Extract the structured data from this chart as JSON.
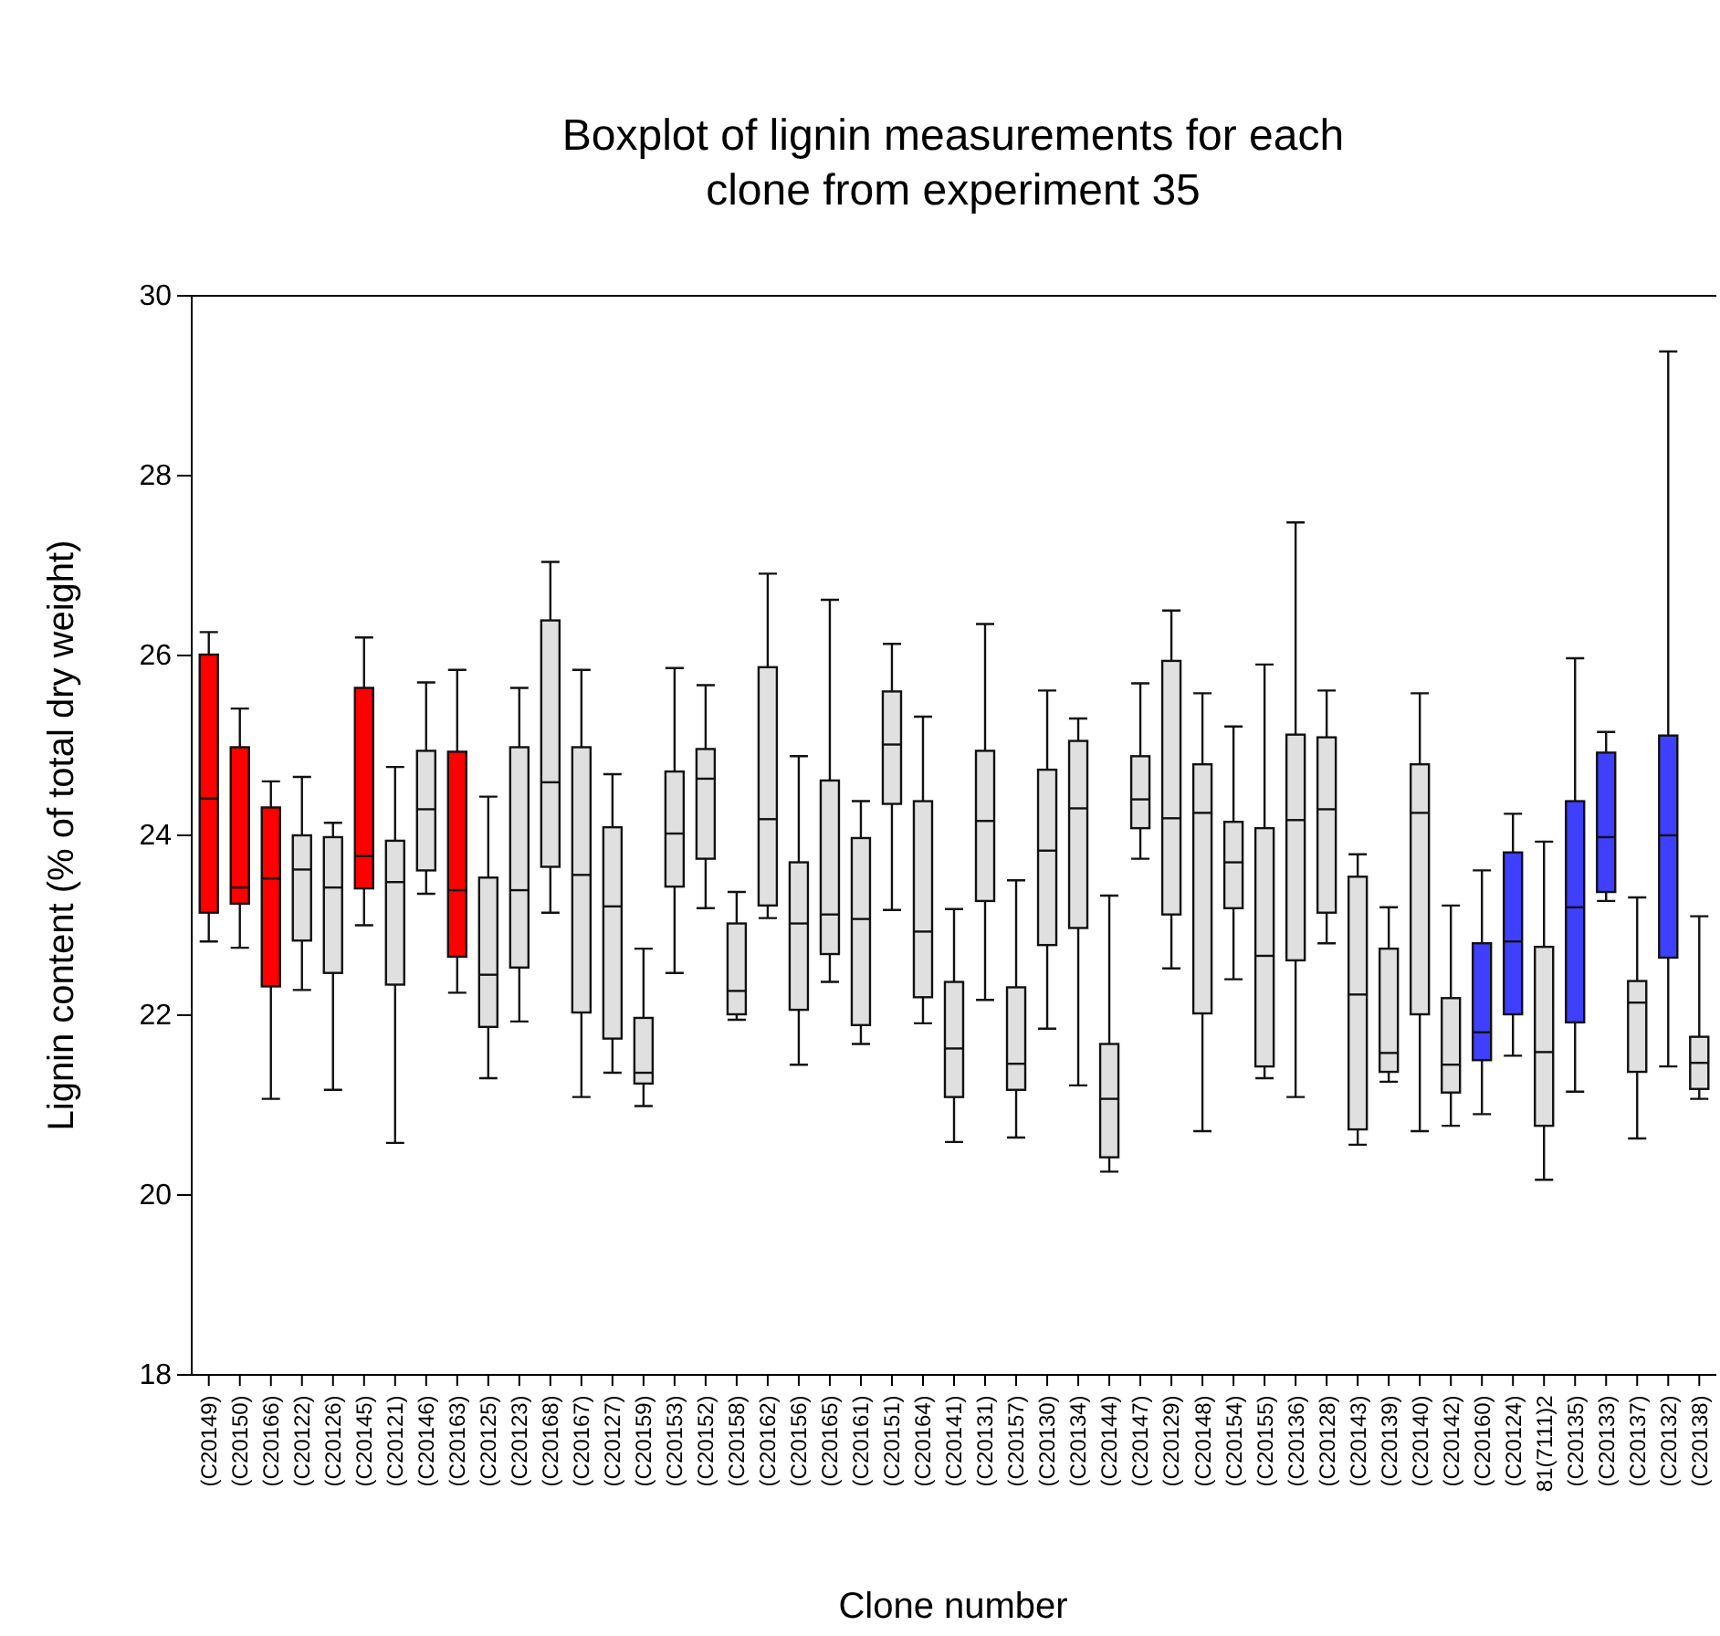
{
  "chart_data": {
    "type": "box",
    "title": "Boxplot of lignin measurements for each clone from experiment 35",
    "xlabel": "Clone number",
    "ylabel": "Lignin content (% of total dry weight)",
    "categories": [
      "(C20149)",
      "(C20150)",
      "(C20166)",
      "(C20122)",
      "(C20126)",
      "(C20145)",
      "(C20121)",
      "(C20146)",
      "(C20163)",
      "(C20125)",
      "(C20123)",
      "(C20168)",
      "(C20167)",
      "(C20127)",
      "(C20159)",
      "(C20153)",
      "(C20152)",
      "(C20158)",
      "(C20162)",
      "(C20156)",
      "(C20165)",
      "(C20161)",
      "(C20151)",
      "(C20164)",
      "(C20141)",
      "(C20131)",
      "(C20157)",
      "(C20130)",
      "(C20134)",
      "(C20144)",
      "(C20147)",
      "(C20129)",
      "(C20148)",
      "(C20154)",
      "(C20155)",
      "(C20136)",
      "(C20128)",
      "(C20143)",
      "(C20139)",
      "(C20140)",
      "(C20142)",
      "(C20160)",
      "(C20124)",
      "81(7111)2",
      "(C20135)",
      "(C20133)",
      "(C20137)",
      "(C20132)",
      "(C20138)"
    ],
    "series": [
      {
        "color": "#ff0000",
        "boxes": [
          {
            "low": 22.82,
            "q1": 23.14,
            "median": 24.41,
            "q3": 26.01,
            "high": 26.26
          },
          {
            "low": 22.75,
            "q1": 23.24,
            "median": 23.42,
            "q3": 24.98,
            "high": 25.41
          },
          {
            "low": 21.07,
            "q1": 22.32,
            "median": 23.52,
            "q3": 24.31,
            "high": 24.6
          },
          null,
          null,
          {
            "low": 23.0,
            "q1": 23.41,
            "median": 23.77,
            "q3": 25.64,
            "high": 26.2
          },
          null,
          null,
          {
            "low": 22.25,
            "q1": 22.65,
            "median": 23.39,
            "q3": 24.93,
            "high": 25.84
          },
          null,
          null,
          null,
          null,
          null,
          null,
          null,
          null,
          null,
          null,
          null,
          null,
          null,
          null,
          null,
          null,
          null,
          null,
          null,
          null,
          null,
          null,
          null,
          null,
          null,
          null,
          null,
          null,
          null,
          null,
          null,
          null,
          null,
          null,
          null,
          null,
          null,
          null,
          null,
          null
        ]
      },
      {
        "color": "#e0e0e0",
        "boxes": [
          null,
          null,
          null,
          {
            "low": 22.28,
            "q1": 22.83,
            "median": 23.62,
            "q3": 24.0,
            "high": 24.65
          },
          {
            "low": 21.17,
            "q1": 22.47,
            "median": 23.42,
            "q3": 23.98,
            "high": 24.14
          },
          null,
          {
            "low": 20.58,
            "q1": 22.34,
            "median": 23.48,
            "q3": 23.94,
            "high": 24.76
          },
          {
            "low": 23.35,
            "q1": 23.61,
            "median": 24.29,
            "q3": 24.94,
            "high": 25.7
          },
          null,
          {
            "low": 21.3,
            "q1": 21.87,
            "median": 22.45,
            "q3": 23.53,
            "high": 24.43
          },
          {
            "low": 21.93,
            "q1": 22.53,
            "median": 23.39,
            "q3": 24.98,
            "high": 25.64
          },
          {
            "low": 23.14,
            "q1": 23.65,
            "median": 24.59,
            "q3": 26.39,
            "high": 27.04
          },
          {
            "low": 21.09,
            "q1": 22.03,
            "median": 23.56,
            "q3": 24.98,
            "high": 25.84
          },
          {
            "low": 21.36,
            "q1": 21.74,
            "median": 23.21,
            "q3": 24.09,
            "high": 24.68
          },
          {
            "low": 20.99,
            "q1": 21.24,
            "median": 21.36,
            "q3": 21.97,
            "high": 22.74
          },
          {
            "low": 22.47,
            "q1": 23.43,
            "median": 24.02,
            "q3": 24.71,
            "high": 25.86
          },
          {
            "low": 23.19,
            "q1": 23.74,
            "median": 24.63,
            "q3": 24.96,
            "high": 25.67
          },
          {
            "low": 21.95,
            "q1": 22.01,
            "median": 22.27,
            "q3": 23.02,
            "high": 23.37
          },
          {
            "low": 23.08,
            "q1": 23.22,
            "median": 24.18,
            "q3": 25.87,
            "high": 26.91
          },
          {
            "low": 21.45,
            "q1": 22.06,
            "median": 23.02,
            "q3": 23.7,
            "high": 24.88
          },
          {
            "low": 22.37,
            "q1": 22.68,
            "median": 23.12,
            "q3": 24.61,
            "high": 26.62
          },
          {
            "low": 21.68,
            "q1": 21.89,
            "median": 23.07,
            "q3": 23.97,
            "high": 24.38
          },
          {
            "low": 23.17,
            "q1": 24.35,
            "median": 25.01,
            "q3": 25.6,
            "high": 26.13
          },
          {
            "low": 21.91,
            "q1": 22.2,
            "median": 22.93,
            "q3": 24.38,
            "high": 25.32
          },
          {
            "low": 20.59,
            "q1": 21.09,
            "median": 21.63,
            "q3": 22.37,
            "high": 23.18
          },
          {
            "low": 22.17,
            "q1": 23.27,
            "median": 24.16,
            "q3": 24.94,
            "high": 26.35
          },
          {
            "low": 20.64,
            "q1": 21.17,
            "median": 21.46,
            "q3": 22.31,
            "high": 23.5
          },
          {
            "low": 21.85,
            "q1": 22.78,
            "median": 23.83,
            "q3": 24.73,
            "high": 25.61
          },
          {
            "low": 21.22,
            "q1": 22.97,
            "median": 24.3,
            "q3": 25.05,
            "high": 25.3
          },
          {
            "low": 20.26,
            "q1": 20.42,
            "median": 21.07,
            "q3": 21.68,
            "high": 23.33
          },
          {
            "low": 23.74,
            "q1": 24.08,
            "median": 24.4,
            "q3": 24.88,
            "high": 25.69
          },
          {
            "low": 22.52,
            "q1": 23.12,
            "median": 24.19,
            "q3": 25.94,
            "high": 26.5
          },
          {
            "low": 20.71,
            "q1": 22.02,
            "median": 24.25,
            "q3": 24.79,
            "high": 25.58
          },
          {
            "low": 22.4,
            "q1": 23.19,
            "median": 23.7,
            "q3": 24.15,
            "high": 25.21
          },
          {
            "low": 21.3,
            "q1": 21.43,
            "median": 22.66,
            "q3": 24.08,
            "high": 25.9
          },
          {
            "low": 21.09,
            "q1": 22.61,
            "median": 24.17,
            "q3": 25.12,
            "high": 27.48
          },
          {
            "low": 22.8,
            "q1": 23.14,
            "median": 24.29,
            "q3": 25.09,
            "high": 25.61
          },
          {
            "low": 20.56,
            "q1": 20.73,
            "median": 22.23,
            "q3": 23.54,
            "high": 23.79
          },
          {
            "low": 21.26,
            "q1": 21.37,
            "median": 21.58,
            "q3": 22.74,
            "high": 23.2
          },
          {
            "low": 20.71,
            "q1": 22.01,
            "median": 24.25,
            "q3": 24.79,
            "high": 25.58
          },
          {
            "low": 20.77,
            "q1": 21.14,
            "median": 21.45,
            "q3": 22.19,
            "high": 23.22
          },
          null,
          null,
          {
            "low": 20.17,
            "q1": 20.77,
            "median": 21.59,
            "q3": 22.76,
            "high": 23.93
          },
          null,
          null,
          {
            "low": 20.63,
            "q1": 21.37,
            "median": 22.14,
            "q3": 22.38,
            "high": 23.31
          },
          null,
          {
            "low": 21.07,
            "q1": 21.18,
            "median": 21.47,
            "q3": 21.76,
            "high": 23.1
          }
        ]
      },
      {
        "color": "#3f3fff",
        "boxes": [
          null,
          null,
          null,
          null,
          null,
          null,
          null,
          null,
          null,
          null,
          null,
          null,
          null,
          null,
          null,
          null,
          null,
          null,
          null,
          null,
          null,
          null,
          null,
          null,
          null,
          null,
          null,
          null,
          null,
          null,
          null,
          null,
          null,
          null,
          null,
          null,
          null,
          null,
          null,
          null,
          null,
          {
            "low": 20.9,
            "q1": 21.5,
            "median": 21.81,
            "q3": 22.8,
            "high": 23.61
          },
          {
            "low": 21.55,
            "q1": 22.01,
            "median": 22.82,
            "q3": 23.81,
            "high": 24.24
          },
          null,
          {
            "low": 21.15,
            "q1": 21.92,
            "median": 23.2,
            "q3": 24.38,
            "high": 25.97
          },
          {
            "low": 23.27,
            "q1": 23.37,
            "median": 23.98,
            "q3": 24.92,
            "high": 25.15
          },
          null,
          {
            "low": 21.43,
            "q1": 22.64,
            "median": 24.0,
            "q3": 25.11,
            "high": 29.38
          },
          null
        ]
      }
    ],
    "ylim": [
      18,
      30
    ],
    "yticks": [
      18,
      20,
      22,
      24,
      26,
      28,
      30
    ]
  }
}
